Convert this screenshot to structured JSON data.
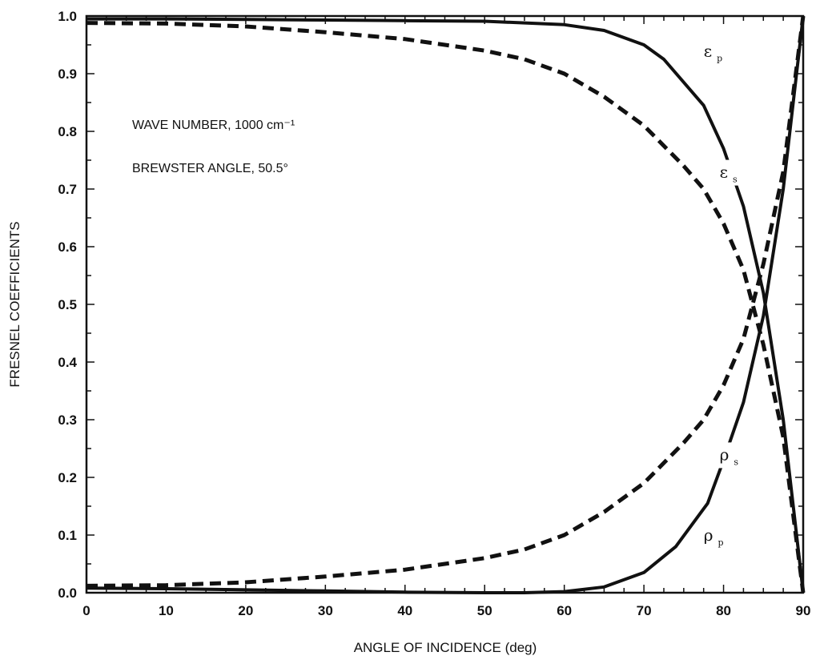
{
  "chart_data": {
    "type": "line",
    "title": "",
    "xlabel": "ANGLE OF INCIDENCE (deg)",
    "ylabel": "FRESNEL COEFFICIENTS",
    "xlim": [
      0,
      90
    ],
    "ylim": [
      0,
      1.0
    ],
    "x_ticks": [
      "0",
      "10",
      "20",
      "30",
      "40",
      "50",
      "60",
      "70",
      "80",
      "90"
    ],
    "y_ticks": [
      "0.0",
      "0.1",
      "0.2",
      "0.3",
      "0.4",
      "0.5",
      "0.6",
      "0.7",
      "0.8",
      "0.9",
      "1.0"
    ],
    "grid": false,
    "annotations": [
      "WAVE NUMBER, 1000 cm⁻¹",
      "BREWSTER ANGLE, 50.5°"
    ],
    "series": [
      {
        "name": "εp",
        "symbol": "ε",
        "subscript": "p",
        "style": "solid",
        "x": [
          0,
          10,
          20,
          30,
          40,
          50,
          60,
          65,
          70,
          72.5,
          77.5,
          80,
          82.5,
          85,
          87.5,
          89,
          90
        ],
        "y": [
          0.995,
          0.995,
          0.994,
          0.993,
          0.992,
          0.991,
          0.985,
          0.975,
          0.95,
          0.925,
          0.845,
          0.77,
          0.67,
          0.52,
          0.3,
          0.12,
          0.0
        ]
      },
      {
        "name": "εs",
        "symbol": "ε",
        "subscript": "s",
        "style": "dashed",
        "x": [
          0,
          10,
          20,
          30,
          40,
          50,
          55,
          60,
          65,
          70,
          75,
          77.5,
          80,
          82.5,
          85,
          87.5,
          90
        ],
        "y": [
          0.988,
          0.987,
          0.982,
          0.972,
          0.96,
          0.94,
          0.925,
          0.9,
          0.86,
          0.81,
          0.74,
          0.7,
          0.64,
          0.56,
          0.43,
          0.27,
          0.0
        ]
      },
      {
        "name": "ρs",
        "symbol": "ρ",
        "subscript": "s",
        "style": "dashed",
        "x": [
          0,
          10,
          20,
          30,
          40,
          50,
          55,
          60,
          65,
          70,
          75,
          77.5,
          80,
          82.5,
          85,
          87.5,
          90
        ],
        "y": [
          0.012,
          0.013,
          0.018,
          0.028,
          0.04,
          0.06,
          0.075,
          0.1,
          0.14,
          0.19,
          0.26,
          0.3,
          0.36,
          0.44,
          0.57,
          0.73,
          1.0
        ]
      },
      {
        "name": "ρp",
        "symbol": "ρ",
        "subscript": "p",
        "style": "solid",
        "x": [
          0,
          10,
          20,
          30,
          40,
          50,
          55,
          60,
          65,
          70,
          74,
          78,
          80,
          82.5,
          85,
          87.5,
          90
        ],
        "y": [
          0.008,
          0.007,
          0.005,
          0.003,
          0.001,
          0.0,
          0.0,
          0.002,
          0.01,
          0.035,
          0.08,
          0.155,
          0.23,
          0.33,
          0.48,
          0.7,
          1.0
        ]
      }
    ],
    "series_label_positions": [
      {
        "series": "εp",
        "x": 77.5,
        "y": 0.93
      },
      {
        "series": "εs",
        "x": 79.5,
        "y": 0.72
      },
      {
        "series": "ρs",
        "x": 79.5,
        "y": 0.23
      },
      {
        "series": "ρp",
        "x": 77.5,
        "y": 0.09
      }
    ]
  }
}
